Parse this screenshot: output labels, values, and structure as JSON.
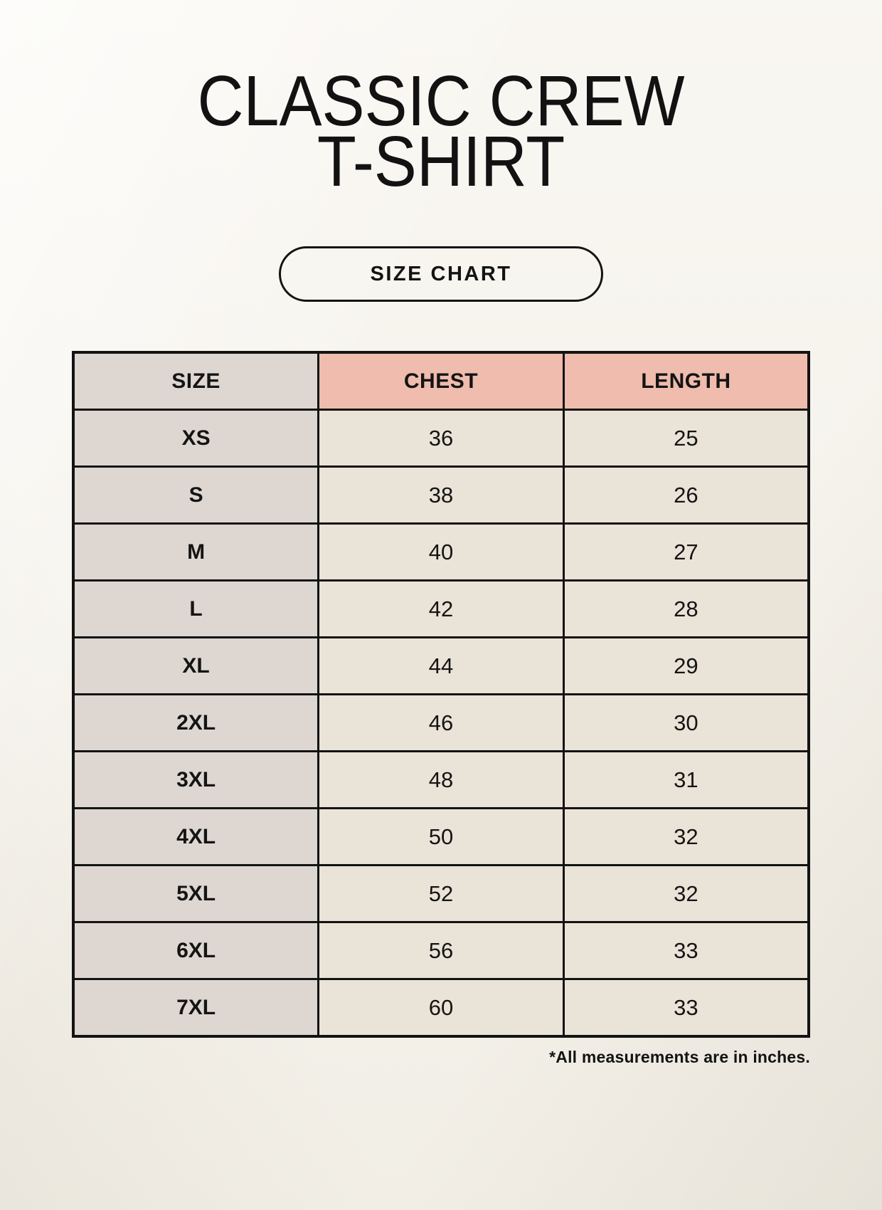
{
  "header": {
    "title_line1": "CLASSIC CREW",
    "title_line2": "T-SHIRT",
    "badge_label": "SIZE CHART"
  },
  "chart_data": {
    "type": "table",
    "title": "CLASSIC CREW T-SHIRT",
    "columns": [
      "SIZE",
      "CHEST",
      "LENGTH"
    ],
    "rows": [
      [
        "XS",
        "36",
        "25"
      ],
      [
        "S",
        "38",
        "26"
      ],
      [
        "M",
        "40",
        "27"
      ],
      [
        "L",
        "42",
        "28"
      ],
      [
        "XL",
        "44",
        "29"
      ],
      [
        "2XL",
        "46",
        "30"
      ],
      [
        "3XL",
        "48",
        "31"
      ],
      [
        "4XL",
        "50",
        "32"
      ],
      [
        "5XL",
        "52",
        "32"
      ],
      [
        "6XL",
        "56",
        "33"
      ],
      [
        "7XL",
        "60",
        "33"
      ]
    ]
  },
  "footer": {
    "note": "*All measurements are in inches."
  },
  "colors": {
    "page_background": "#f7f4ed",
    "size_column_bg": "#ded7d1",
    "header_accent_bg": "#efbcad",
    "data_cell_bg": "#eae3d7",
    "border": "#131313",
    "text": "#141414"
  }
}
